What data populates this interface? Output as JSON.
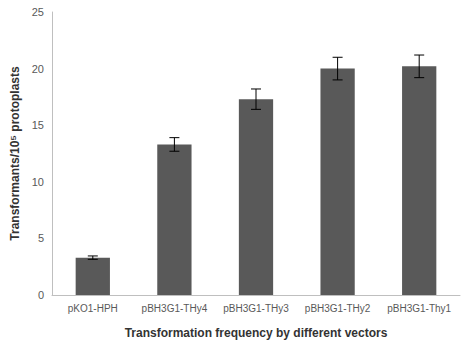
{
  "chart_data": {
    "type": "bar",
    "x_label": "Transformation frequency by different vectors",
    "y_label": "Transformants/10⁵ protoplasts",
    "categories": [
      "pKO1-HPH",
      "pBH3G1-THy4",
      "pBH3G1-THy3",
      "pBH3G1-THy2",
      "pBH3G1-Thy1"
    ],
    "values": [
      3.3,
      13.3,
      17.3,
      20.0,
      20.2
    ],
    "errors": [
      0.15,
      0.6,
      0.9,
      1.0,
      1.0
    ],
    "color": "#595959",
    "ylim": [
      0,
      25
    ],
    "yticks": [
      0,
      5,
      10,
      15,
      20,
      25
    ],
    "grid": false
  }
}
